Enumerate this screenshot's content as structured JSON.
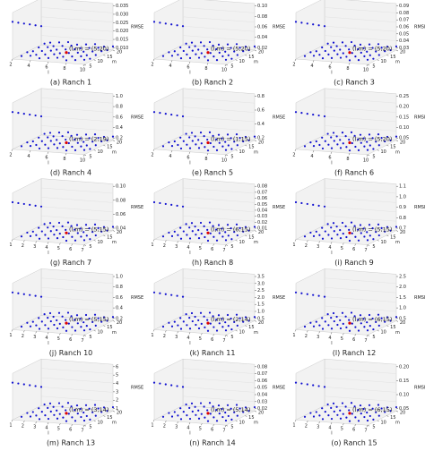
{
  "chart_data": [
    {
      "type": "scatter3d",
      "caption": "(a) Ranch 1",
      "annotation": "(l,m) = (5,20)",
      "zlabel": "RMSE",
      "xlabel": "l",
      "ylabel": "m",
      "xticks": [
        2,
        4,
        6,
        8,
        10
      ],
      "yticks": [
        5,
        10,
        15,
        20
      ],
      "zticks": [
        {
          "value": 0.01,
          "label": "0.010"
        },
        0.015,
        {
          "value": 0.02,
          "label": "0.020"
        },
        0.025,
        {
          "value": 0.03,
          "label": "0.030"
        },
        0.035
      ]
    },
    {
      "type": "scatter3d",
      "caption": "(b) Ranch 2",
      "annotation": "(l,m) = (5,20)",
      "zlabel": "RMSE",
      "xlabel": "l",
      "ylabel": "m",
      "xticks": [
        2,
        4,
        6,
        8,
        10
      ],
      "yticks": [
        5,
        10,
        15,
        20
      ],
      "zticks": [
        0.02,
        0.04,
        0.06,
        0.08,
        {
          "value": 0.1,
          "label": "0.10"
        }
      ]
    },
    {
      "type": "scatter3d",
      "caption": "(c) Ranch 3",
      "annotation": "(l,m) = (5,20)",
      "zlabel": "RMSE",
      "xlabel": "l",
      "ylabel": "m",
      "xticks": [
        2,
        4,
        6,
        8,
        10
      ],
      "yticks": [
        5,
        10,
        15,
        20
      ],
      "zticks": [
        0.03,
        0.04,
        0.05,
        0.06,
        0.07,
        0.08,
        0.09
      ]
    },
    {
      "type": "scatter3d",
      "caption": "(d) Ranch 4",
      "annotation": "(l,m) = (2,19)",
      "zlabel": "RMSE",
      "xlabel": "l",
      "ylabel": "m",
      "xticks": [
        2,
        4,
        6,
        8,
        10
      ],
      "yticks": [
        5,
        10,
        15,
        20
      ],
      "zticks": [
        0.2,
        0.4,
        0.6,
        0.8,
        {
          "value": 1,
          "label": "1.0"
        }
      ]
    },
    {
      "type": "scatter3d",
      "caption": "(e) Ranch 5",
      "annotation": "(l,m) = (1,15)",
      "zlabel": "RMSE",
      "xlabel": "l",
      "ylabel": "m",
      "xticks": [
        2,
        4,
        6,
        8,
        10
      ],
      "yticks": [
        5,
        10,
        15,
        20
      ],
      "zticks": [
        0.2,
        0.4,
        0.6,
        0.8
      ]
    },
    {
      "type": "scatter3d",
      "caption": "(f) Ranch 6",
      "annotation": "(l,m) = (5,20)",
      "zlabel": "RMSE",
      "xlabel": "l",
      "ylabel": "m",
      "xticks": [
        2,
        4,
        6,
        8,
        10
      ],
      "yticks": [
        5,
        10,
        15,
        20
      ],
      "zticks": [
        0.05,
        {
          "value": 0.1,
          "label": "0.10"
        },
        0.15,
        {
          "value": 0.2,
          "label": "0.20"
        },
        0.25
      ]
    },
    {
      "type": "scatter3d",
      "caption": "(g) Ranch 7",
      "annotation": "(l,m) = (5,15)",
      "zlabel": "RMSE",
      "xlabel": "l",
      "ylabel": "m",
      "xticks": [
        1,
        2,
        3,
        4,
        5,
        6,
        7
      ],
      "yticks": [
        5,
        10,
        15,
        20
      ],
      "zticks": [
        0.04,
        0.06,
        0.08,
        {
          "value": 0.1,
          "label": "0.10"
        }
      ]
    },
    {
      "type": "scatter3d",
      "caption": "(h) Ranch 8",
      "annotation": "(l,m) = (6,15)",
      "zlabel": "RMSE",
      "xlabel": "l",
      "ylabel": "m",
      "xticks": [
        1,
        2,
        3,
        4,
        5,
        6,
        7
      ],
      "yticks": [
        5,
        10,
        15,
        20
      ],
      "zticks": [
        0.01,
        0.02,
        0.03,
        0.04,
        0.05,
        0.06,
        0.07,
        0.08
      ]
    },
    {
      "type": "scatter3d",
      "caption": "(i) Ranch 9",
      "annotation": "(l,m) = (5,15)",
      "zlabel": "RMSE",
      "xlabel": "l",
      "ylabel": "m",
      "xticks": [
        1,
        2,
        3,
        4,
        5,
        6,
        7
      ],
      "yticks": [
        5,
        10,
        15,
        20
      ],
      "zticks": [
        0.7,
        0.8,
        0.9,
        {
          "value": 1,
          "label": "1.0"
        },
        1.1
      ]
    },
    {
      "type": "scatter3d",
      "caption": "(j) Ranch 10",
      "annotation": "(l,m) = (5,15)",
      "zlabel": "RMSE",
      "xlabel": "l",
      "ylabel": "m",
      "xticks": [
        1,
        2,
        3,
        4,
        5,
        6,
        7
      ],
      "yticks": [
        5,
        10,
        15,
        20
      ],
      "zticks": [
        0.2,
        0.4,
        0.6,
        0.8,
        {
          "value": 1,
          "label": "1.0"
        }
      ]
    },
    {
      "type": "scatter3d",
      "caption": "(k) Ranch 11",
      "annotation": "(l,m) = (2,14)",
      "zlabel": "RMSE",
      "xlabel": "l",
      "ylabel": "m",
      "xticks": [
        1,
        2,
        3,
        4,
        5,
        6,
        7
      ],
      "yticks": [
        5,
        10,
        15,
        20
      ],
      "zticks": [
        0.5,
        {
          "value": 1,
          "label": "1.0"
        },
        1.5,
        {
          "value": 2,
          "label": "2.0"
        },
        2.5,
        {
          "value": 3,
          "label": "3.0"
        },
        3.5
      ]
    },
    {
      "type": "scatter3d",
      "caption": "(l) Ranch 12",
      "annotation": "(l,m) = (6,15)",
      "zlabel": "RMSE",
      "xlabel": "l",
      "ylabel": "m",
      "xticks": [
        1,
        2,
        3,
        4,
        5,
        6,
        7
      ],
      "yticks": [
        5,
        10,
        15,
        20
      ],
      "zticks": [
        0.5,
        {
          "value": 1,
          "label": "1.0"
        },
        1.5,
        {
          "value": 2,
          "label": "2.0"
        },
        2.5
      ]
    },
    {
      "type": "scatter3d",
      "caption": "(m) Ranch 13",
      "annotation": "(l,m) = (3,14)",
      "zlabel": "RMSE",
      "xlabel": "l",
      "ylabel": "m",
      "xticks": [
        1,
        2,
        3,
        4,
        5,
        6,
        7
      ],
      "yticks": [
        5,
        10,
        15,
        20
      ],
      "zticks": [
        1,
        2,
        3,
        4,
        5,
        6
      ]
    },
    {
      "type": "scatter3d",
      "caption": "(n) Ranch 14",
      "annotation": "(l,m) = (5,14)",
      "zlabel": "RMSE",
      "xlabel": "l",
      "ylabel": "m",
      "xticks": [
        1,
        2,
        3,
        4,
        5,
        6,
        7
      ],
      "yticks": [
        5,
        10,
        15,
        20
      ],
      "zticks": [
        0.02,
        0.03,
        0.04,
        0.05,
        0.06,
        0.07,
        0.08
      ]
    },
    {
      "type": "scatter3d",
      "caption": "(o) Ranch 15",
      "annotation": "(l,m) = (6,15)",
      "zlabel": "RMSE",
      "xlabel": "l",
      "ylabel": "m",
      "xticks": [
        1,
        2,
        3,
        4,
        5,
        6,
        7
      ],
      "yticks": [
        5,
        10,
        15,
        20
      ],
      "zticks": [
        0.05,
        {
          "value": 0.1,
          "label": "0.10"
        },
        0.15,
        {
          "value": 0.2,
          "label": "0.20"
        }
      ]
    }
  ]
}
